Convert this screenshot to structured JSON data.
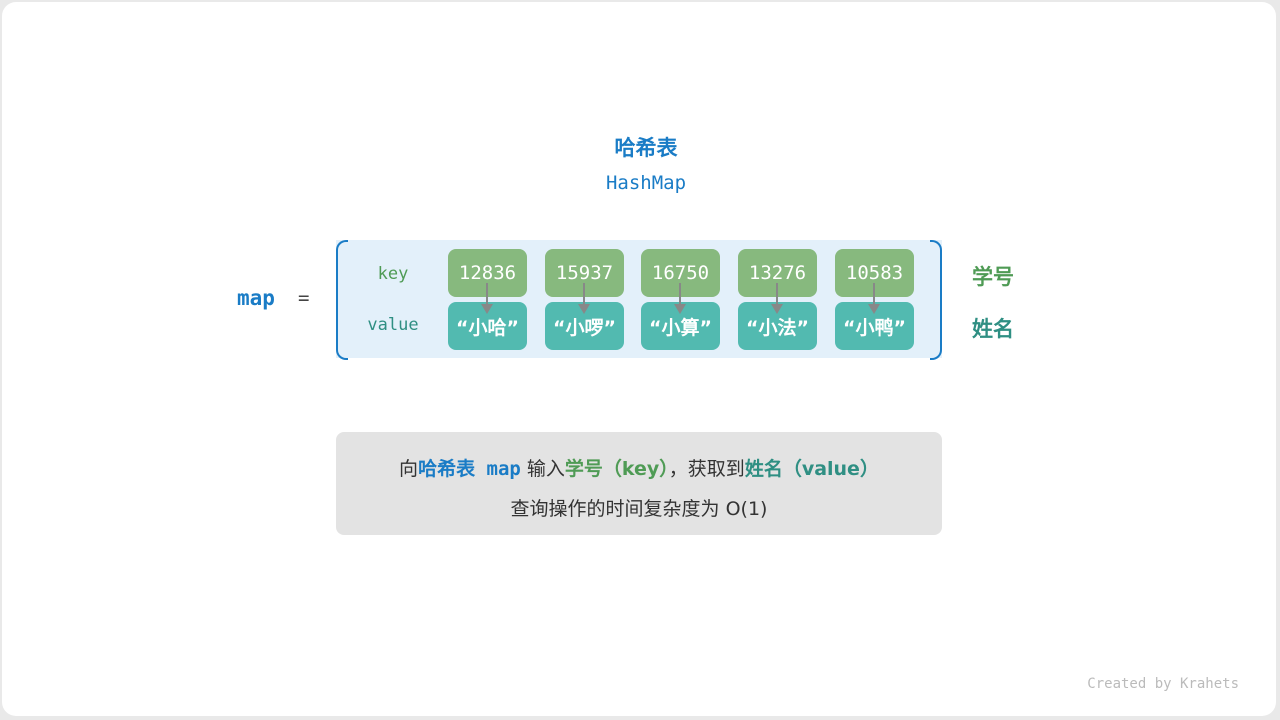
{
  "title": "哈希表",
  "subtitle": "HashMap",
  "map_label": "map",
  "equals": "=",
  "row_labels": {
    "key": "key",
    "value": "value"
  },
  "keys": [
    "12836",
    "15937",
    "16750",
    "13276",
    "10583"
  ],
  "values": [
    "“小哈”",
    "“小啰”",
    "“小算”",
    "“小法”",
    "“小鸭”"
  ],
  "side_labels": {
    "key": "学号",
    "value": "姓名"
  },
  "note": {
    "p1": "向",
    "p2": "哈希表",
    "p3": " map",
    "p4": " 输入",
    "p5": "学号（key）",
    "p6": "，获取到",
    "p7": "姓名（value）",
    "line2": "查询操作的时间复杂度为 O(1)"
  },
  "credit": "Created by Krahets",
  "colors": {
    "blue": "#1a7cc6",
    "key": "#87b97e",
    "value": "#52bab0",
    "arrow": "#888888"
  }
}
